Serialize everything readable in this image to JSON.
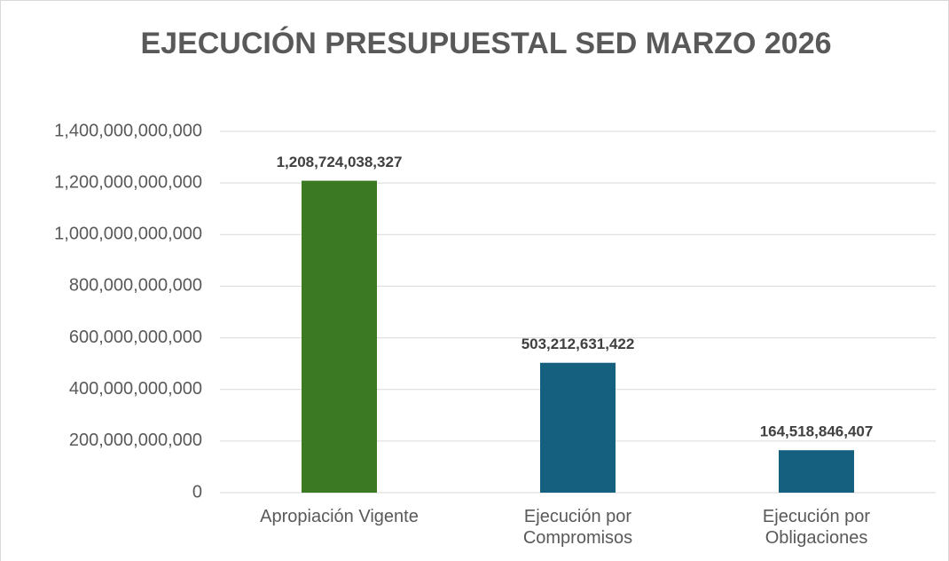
{
  "chart_data": {
    "type": "bar",
    "title": "EJECUCIÓN PRESUPUESTAL SED MARZO 2026",
    "categories": [
      "Apropiación Vigente",
      "Ejecución por Compromisos",
      "Ejecución por Obligaciones"
    ],
    "values": [
      1208724038327,
      503212631422,
      164518846407
    ],
    "value_labels": [
      "1,208,724,038,327",
      "503,212,631,422",
      "164,518,846,407"
    ],
    "colors": [
      "#3b7a23",
      "#16607f",
      "#16607f"
    ],
    "ylim": [
      0,
      1400000000000
    ],
    "yticks": [
      0,
      {
        "value": 200000000000,
        "label": "200,000,000,000"
      },
      {
        "value": 400000000000,
        "label": "400,000,000,000"
      },
      {
        "value": 600000000000,
        "label": "600,000,000,000"
      },
      {
        "value": 800000000000,
        "label": "800,000,000,000"
      },
      {
        "value": 1000000000000,
        "label": "1,000,000,000,000"
      },
      {
        "value": 1200000000000,
        "label": "1,200,000,000,000"
      },
      {
        "value": 1400000000000,
        "label": "1,400,000,000,000"
      }
    ],
    "grid": true
  }
}
